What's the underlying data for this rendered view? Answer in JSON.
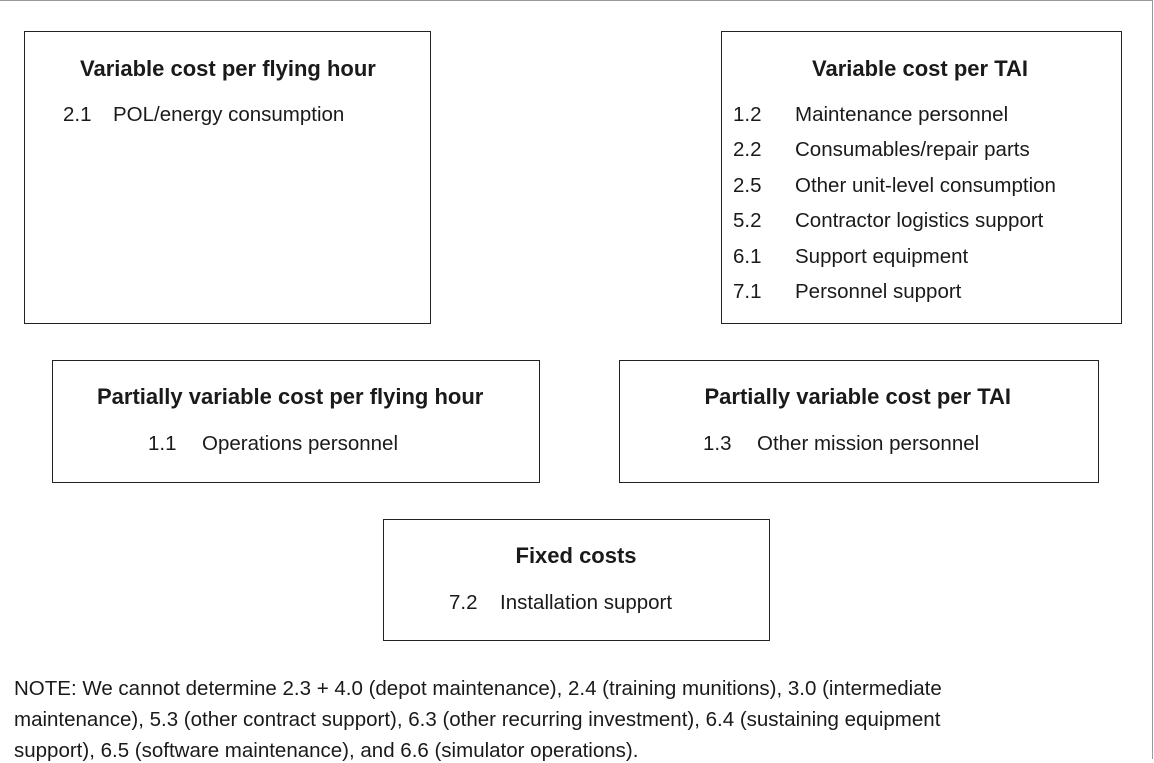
{
  "boxes": [
    {
      "title": "Variable cost per flying hour",
      "items": [
        {
          "code": "2.1",
          "label": "POL/energy consumption"
        }
      ]
    },
    {
      "title": "Variable cost per TAI",
      "items": [
        {
          "code": "1.2",
          "label": "Maintenance personnel"
        },
        {
          "code": "2.2",
          "label": "Consumables/repair parts"
        },
        {
          "code": "2.5",
          "label": "Other unit-level consumption"
        },
        {
          "code": "5.2",
          "label": "Contractor logistics support"
        },
        {
          "code": "6.1",
          "label": "Support equipment"
        },
        {
          "code": "7.1",
          "label": "Personnel support"
        }
      ]
    },
    {
      "title": "Partially variable cost per flying hour",
      "items": [
        {
          "code": "1.1",
          "label": "Operations personnel"
        }
      ]
    },
    {
      "title": "Partially variable cost per TAI",
      "items": [
        {
          "code": "1.3",
          "label": "Other mission personnel"
        }
      ]
    },
    {
      "title": "Fixed costs",
      "items": [
        {
          "code": "7.2",
          "label": "Installation support"
        }
      ]
    }
  ],
  "note": {
    "lines": [
      "NOTE: We cannot determine 2.3 + 4.0 (depot maintenance), 2.4 (training munitions), 3.0 (intermediate",
      "maintenance), 5.3 (other contract support), 6.3 (other recurring investment), 6.4 (sustaining equipment",
      "support), 6.5 (software maintenance), and 6.6 (simulator operations)."
    ]
  }
}
